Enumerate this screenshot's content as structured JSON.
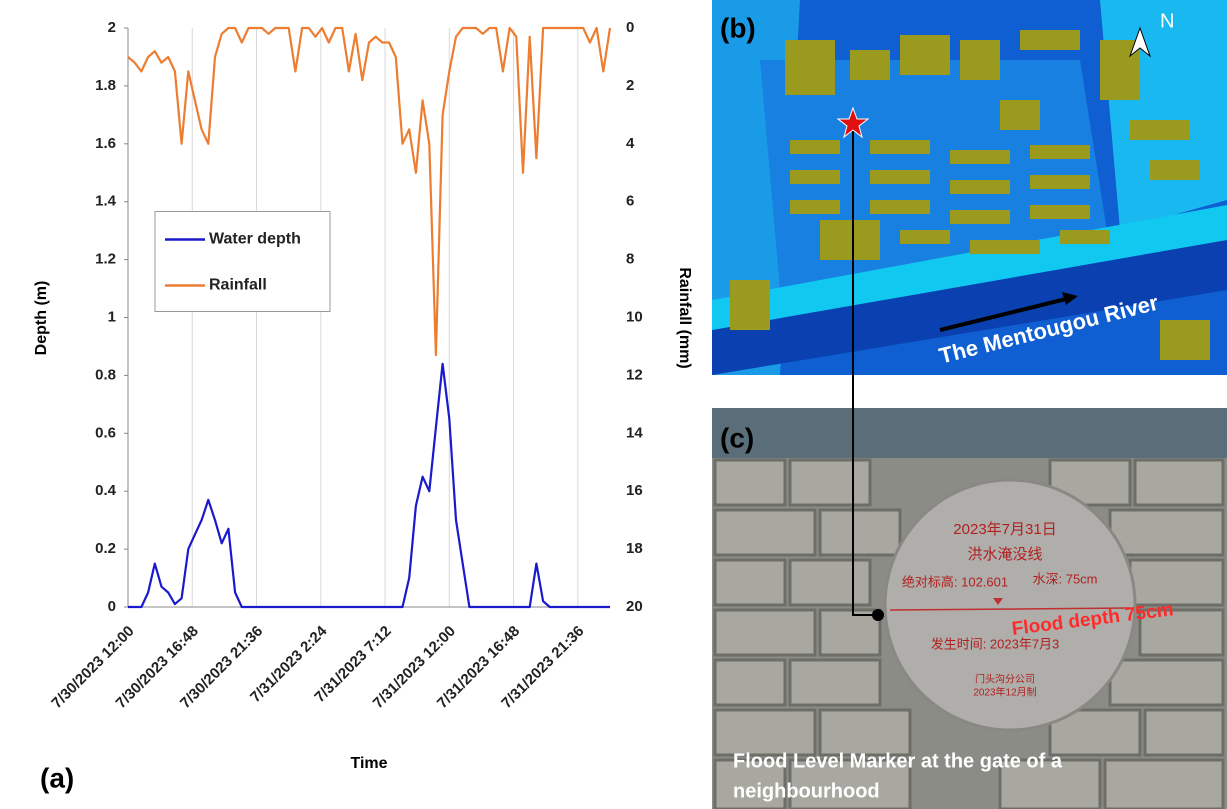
{
  "chart_data": {
    "type": "line",
    "x_label": "Time",
    "y_label": "Depth (m)",
    "y2_label": "Rainfall (mm)",
    "x": [
      0,
      0.5,
      1,
      1.5,
      2,
      2.5,
      3,
      3.5,
      4,
      4.5,
      5,
      5.5,
      6,
      6.5,
      7,
      7.5,
      8,
      8.5,
      9,
      9.5,
      10,
      10.5,
      11,
      11.5,
      12,
      12.5,
      13,
      13.5,
      14,
      14.5,
      15,
      15.5,
      16,
      16.5,
      17,
      17.5,
      18,
      18.5,
      19,
      19.5,
      20,
      20.5,
      21,
      21.5,
      22,
      22.5,
      23,
      23.5,
      24,
      24.5,
      25,
      25.5,
      26,
      26.5,
      27,
      27.5,
      28,
      28.5,
      29,
      29.5,
      30,
      30.5,
      31,
      31.5,
      32,
      32.5,
      33,
      33.5,
      34,
      34.5,
      35,
      35.5,
      36
    ],
    "series": [
      {
        "name": "Water depth",
        "color": "#1a1acc",
        "values": [
          0,
          0,
          0,
          0.05,
          0.15,
          0.07,
          0.05,
          0.01,
          0.03,
          0.2,
          0.25,
          0.3,
          0.37,
          0.3,
          0.22,
          0.27,
          0.05,
          0,
          0,
          0,
          0,
          0,
          0,
          0,
          0,
          0,
          0,
          0,
          0,
          0,
          0,
          0,
          0,
          0,
          0,
          0,
          0,
          0,
          0,
          0,
          0,
          0,
          0.1,
          0.35,
          0.45,
          0.4,
          0.62,
          0.84,
          0.65,
          0.3,
          0.15,
          0,
          0,
          0,
          0,
          0,
          0,
          0,
          0,
          0,
          0,
          0.15,
          0.02,
          0,
          0,
          0,
          0,
          0,
          0,
          0,
          0,
          0,
          0
        ]
      },
      {
        "name": "Rainfall",
        "color": "#ed7d31",
        "axis": "y2",
        "values": [
          1,
          1.2,
          1.5,
          1,
          0.8,
          1.2,
          1,
          1.5,
          4,
          1.5,
          2.5,
          3.5,
          4,
          1,
          0.2,
          0,
          0,
          0.5,
          0,
          0,
          0,
          0.2,
          0,
          0,
          0,
          1.5,
          0,
          0,
          0.3,
          0,
          0.5,
          0,
          0,
          1.5,
          0.2,
          1.8,
          0.5,
          0.3,
          0.5,
          0.5,
          1,
          4,
          3.5,
          5,
          2.5,
          4,
          11.3,
          3,
          1.5,
          0.3,
          0,
          0,
          0,
          0.2,
          0,
          0,
          1.5,
          0,
          0.3,
          5,
          0.3,
          4.5,
          0,
          0,
          0,
          0,
          0,
          0,
          0,
          0.5,
          0,
          1.5,
          0
        ]
      }
    ],
    "xlim": [
      0,
      36
    ],
    "xticks": [
      {
        "value": 0,
        "label": "7/30/2023 12:00"
      },
      {
        "value": 4.8,
        "label": "7/30/2023 16:48"
      },
      {
        "value": 9.6,
        "label": "7/30/2023 21:36"
      },
      {
        "value": 14.4,
        "label": "7/31/2023 2:24"
      },
      {
        "value": 19.2,
        "label": "7/31/2023 7:12"
      },
      {
        "value": 24,
        "label": "7/31/2023 12:00"
      },
      {
        "value": 28.8,
        "label": "7/31/2023 16:48"
      },
      {
        "value": 33.6,
        "label": "7/31/2023 21:36"
      }
    ],
    "ylim": [
      0,
      2
    ],
    "yticks": [
      0,
      0.2,
      0.4,
      0.6,
      0.8,
      1,
      1.2,
      1.4,
      1.6,
      1.8,
      2
    ],
    "y2lim": [
      20,
      0
    ],
    "y2ticks": [
      0,
      2,
      4,
      6,
      8,
      10,
      12,
      14,
      16,
      18,
      20
    ],
    "grid": "x",
    "legend": "center-left"
  },
  "panel_labels": [
    "(a)",
    "(b)",
    "(c)"
  ],
  "map": {
    "north": "N",
    "river": "The Mentougou River"
  },
  "photo": {
    "plate_lines": [
      "2023年7月31日",
      "洪水淹没线",
      "绝对标高: 102.601",
      "水深: 75cm",
      "发生时间: 2023年7月3",
      "门头沟分公司",
      "2023年12月制"
    ],
    "flood_depth": "Flood depth 75cm",
    "caption": [
      "Flood Level Marker at the gate of a",
      "neighbourhood"
    ]
  }
}
